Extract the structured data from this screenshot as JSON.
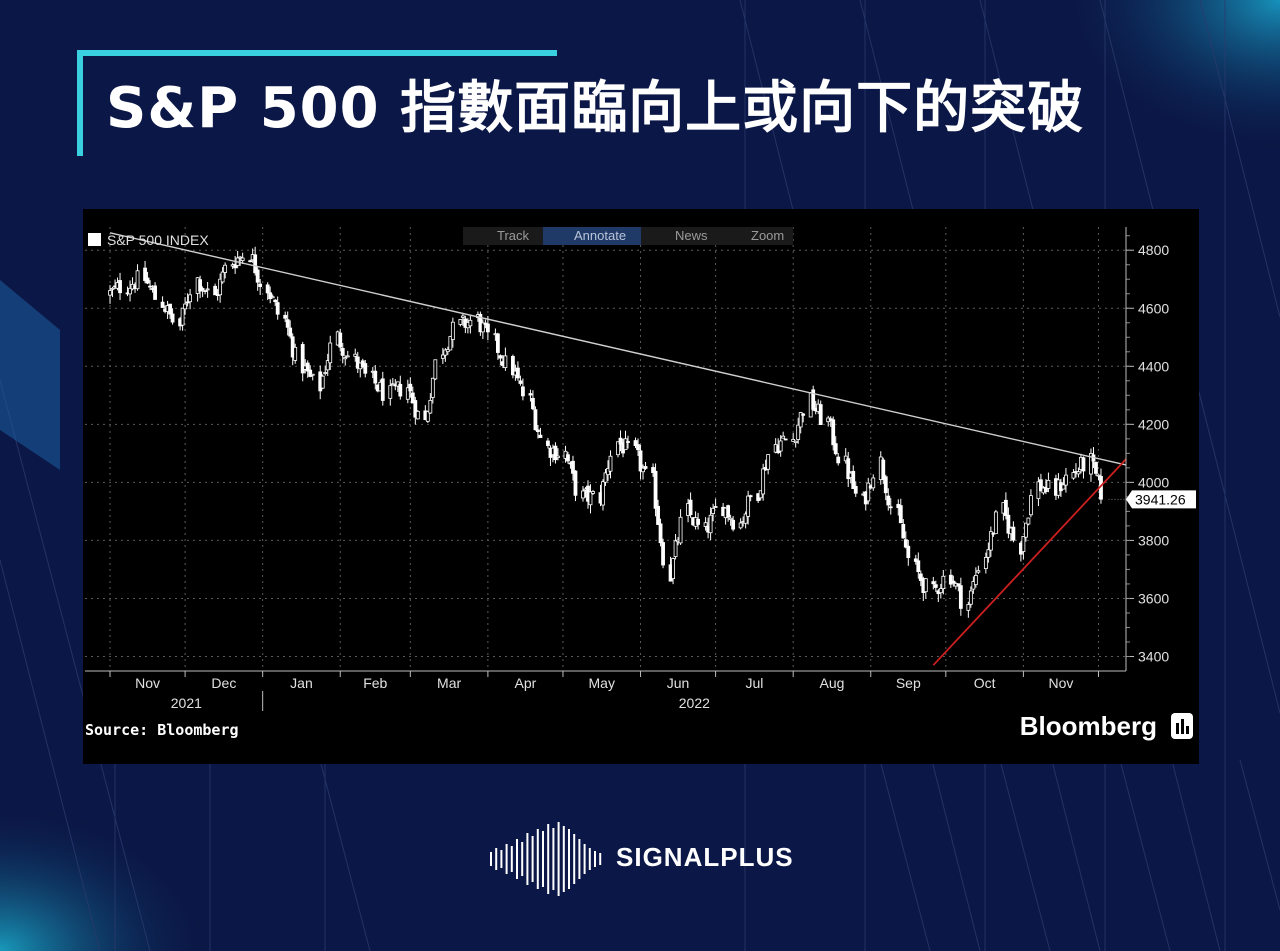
{
  "page": {
    "title": "S&P 500 指數面臨向上或向下的突破"
  },
  "chart_toolbar": {
    "legend_label": "S&P 500 INDEX",
    "items": [
      "Track",
      "Annotate",
      "News",
      "Zoom"
    ]
  },
  "chart_footer": {
    "source": "Source: Bloomberg",
    "brand": "Bloomberg"
  },
  "footer": {
    "brand": "SIGNALPLUS"
  },
  "colors": {
    "background": "#0b1746",
    "accent": "#39d0e0",
    "candles": "#ffffff",
    "downtrend_line": "#d0d0d0",
    "uptrend_line": "#cc1f1f"
  },
  "chart_data": {
    "type": "line",
    "series": [
      {
        "name": "S&P 500 INDEX",
        "x": [
          "2021-11-01",
          "2021-11-08",
          "2021-11-15",
          "2021-11-22",
          "2021-11-29",
          "2021-12-06",
          "2021-12-13",
          "2021-12-20",
          "2021-12-27",
          "2022-01-03",
          "2022-01-10",
          "2022-01-17",
          "2022-01-24",
          "2022-01-31",
          "2022-02-07",
          "2022-02-14",
          "2022-02-21",
          "2022-02-28",
          "2022-03-07",
          "2022-03-14",
          "2022-03-21",
          "2022-03-28",
          "2022-04-04",
          "2022-04-11",
          "2022-04-18",
          "2022-04-25",
          "2022-05-02",
          "2022-05-09",
          "2022-05-16",
          "2022-05-23",
          "2022-05-30",
          "2022-06-06",
          "2022-06-13",
          "2022-06-20",
          "2022-06-27",
          "2022-07-04",
          "2022-07-11",
          "2022-07-18",
          "2022-07-25",
          "2022-08-01",
          "2022-08-08",
          "2022-08-15",
          "2022-08-22",
          "2022-08-29",
          "2022-09-05",
          "2022-09-12",
          "2022-09-19",
          "2022-09-26",
          "2022-10-03",
          "2022-10-10",
          "2022-10-17",
          "2022-10-24",
          "2022-10-31",
          "2022-11-07",
          "2022-11-14",
          "2022-11-21",
          "2022-11-28",
          "2022-12-05"
        ],
        "values": [
          4650,
          4680,
          4700,
          4620,
          4540,
          4700,
          4640,
          4760,
          4790,
          4670,
          4560,
          4400,
          4330,
          4500,
          4420,
          4350,
          4300,
          4330,
          4210,
          4460,
          4540,
          4560,
          4480,
          4390,
          4280,
          4120,
          4100,
          3950,
          3950,
          4140,
          4100,
          4000,
          3680,
          3900,
          3830,
          3920,
          3860,
          3970,
          4130,
          4150,
          4280,
          4210,
          4060,
          3930,
          4070,
          3880,
          3700,
          3620,
          3680,
          3580,
          3750,
          3900,
          3780,
          3990,
          3970,
          4030,
          4070,
          3941.26
        ]
      }
    ],
    "last_value_label": "3941.26",
    "y_ticks": [
      3400,
      3600,
      3800,
      4000,
      4200,
      4400,
      4600,
      4800
    ],
    "x_month_labels": [
      "Nov",
      "Dec",
      "Jan",
      "Feb",
      "Mar",
      "Apr",
      "May",
      "Jun",
      "Jul",
      "Aug",
      "Sep",
      "Oct",
      "Nov"
    ],
    "x_year_labels": [
      "2021",
      "2022"
    ],
    "ylim": [
      3350,
      4880
    ],
    "grid": true,
    "annotations": [
      {
        "type": "trendline",
        "color": "#d0d0d0",
        "from": [
          "2021-11-01",
          4860
        ],
        "to": [
          "2022-12-12",
          4060
        ]
      },
      {
        "type": "trendline",
        "color": "#cc1f1f",
        "from": [
          "2022-09-26",
          3370
        ],
        "to": [
          "2022-12-12",
          4080
        ]
      }
    ]
  }
}
